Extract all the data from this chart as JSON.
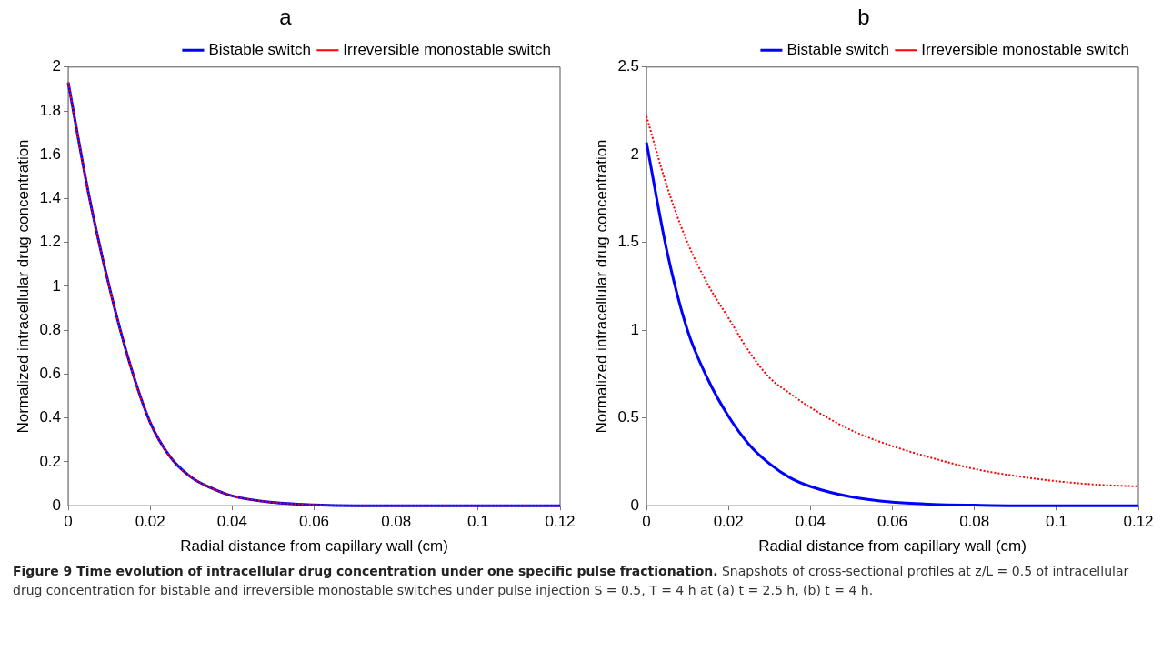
{
  "chart_data": [
    {
      "type": "line",
      "title": "a",
      "xlabel": "Radial distance from capillary wall (cm)",
      "ylabel": "Normalized intracellular drug concentration",
      "x": [
        0,
        0.005,
        0.01,
        0.015,
        0.02,
        0.025,
        0.03,
        0.035,
        0.04,
        0.05,
        0.06,
        0.07,
        0.08,
        0.09,
        0.1,
        0.11,
        0.12
      ],
      "series": [
        {
          "name": "Bistable switch",
          "color": "#0000ff",
          "line_style": "solid",
          "values": [
            1.93,
            1.42,
            1.0,
            0.65,
            0.38,
            0.22,
            0.13,
            0.08,
            0.045,
            0.015,
            0.004,
            0,
            0,
            0,
            0,
            0,
            0
          ]
        },
        {
          "name": "Irreversible monostable switch",
          "color": "#ff0000",
          "line_style": "dotted",
          "values": [
            1.93,
            1.42,
            1.0,
            0.65,
            0.38,
            0.22,
            0.13,
            0.08,
            0.045,
            0.015,
            0.004,
            0,
            0,
            0,
            0,
            0,
            0
          ]
        }
      ],
      "xlim": [
        0,
        0.12
      ],
      "xticks": [
        0,
        0.02,
        0.04,
        0.06,
        0.08,
        0.1,
        0.12
      ],
      "ylim": [
        0,
        2
      ],
      "yticks": [
        0,
        0.2,
        0.4,
        0.6,
        0.8,
        1,
        1.2,
        1.4,
        1.6,
        1.8,
        2
      ],
      "legend": "top right",
      "marker": "none",
      "annotations": [
        "Figure 9 Time evolution of intracellular drug concentration under one specific pulse fractionation.",
        "Snapshots of cross-sectional profiles at z/L = 0.5 of intracellular drug concentration for bistable and irreversible monostable switches under pulse injection S = 0.5, T = 4 h at (a) t = 2.5 h, (b) t = 4 h."
      ]
    },
    {
      "type": "line",
      "title": "b",
      "xlabel": "Radial distance from capillary wall (cm)",
      "ylabel": "Normalized intracellular drug concentration",
      "x": [
        0,
        0.005,
        0.01,
        0.015,
        0.02,
        0.025,
        0.03,
        0.035,
        0.04,
        0.05,
        0.06,
        0.07,
        0.08,
        0.09,
        0.1,
        0.11,
        0.12
      ],
      "series": [
        {
          "name": "Bistable switch",
          "color": "#0000ff",
          "line_style": "solid",
          "values": [
            2.07,
            1.45,
            1.0,
            0.72,
            0.51,
            0.35,
            0.24,
            0.16,
            0.11,
            0.05,
            0.02,
            0.008,
            0.003,
            0,
            0,
            0,
            0
          ]
        },
        {
          "name": "Irreversible monostable switch",
          "color": "#ff0000",
          "line_style": "dotted",
          "values": [
            2.22,
            1.82,
            1.5,
            1.26,
            1.07,
            0.88,
            0.73,
            0.64,
            0.56,
            0.43,
            0.34,
            0.27,
            0.21,
            0.17,
            0.14,
            0.12,
            0.11
          ]
        }
      ],
      "xlim": [
        0,
        0.12
      ],
      "xticks": [
        0,
        0.02,
        0.04,
        0.06,
        0.08,
        0.1,
        0.12
      ],
      "ylim": [
        0,
        2.5
      ],
      "yticks": [
        0,
        0.5,
        1,
        1.5,
        2,
        2.5
      ],
      "legend": "top right",
      "marker": "none"
    }
  ]
}
